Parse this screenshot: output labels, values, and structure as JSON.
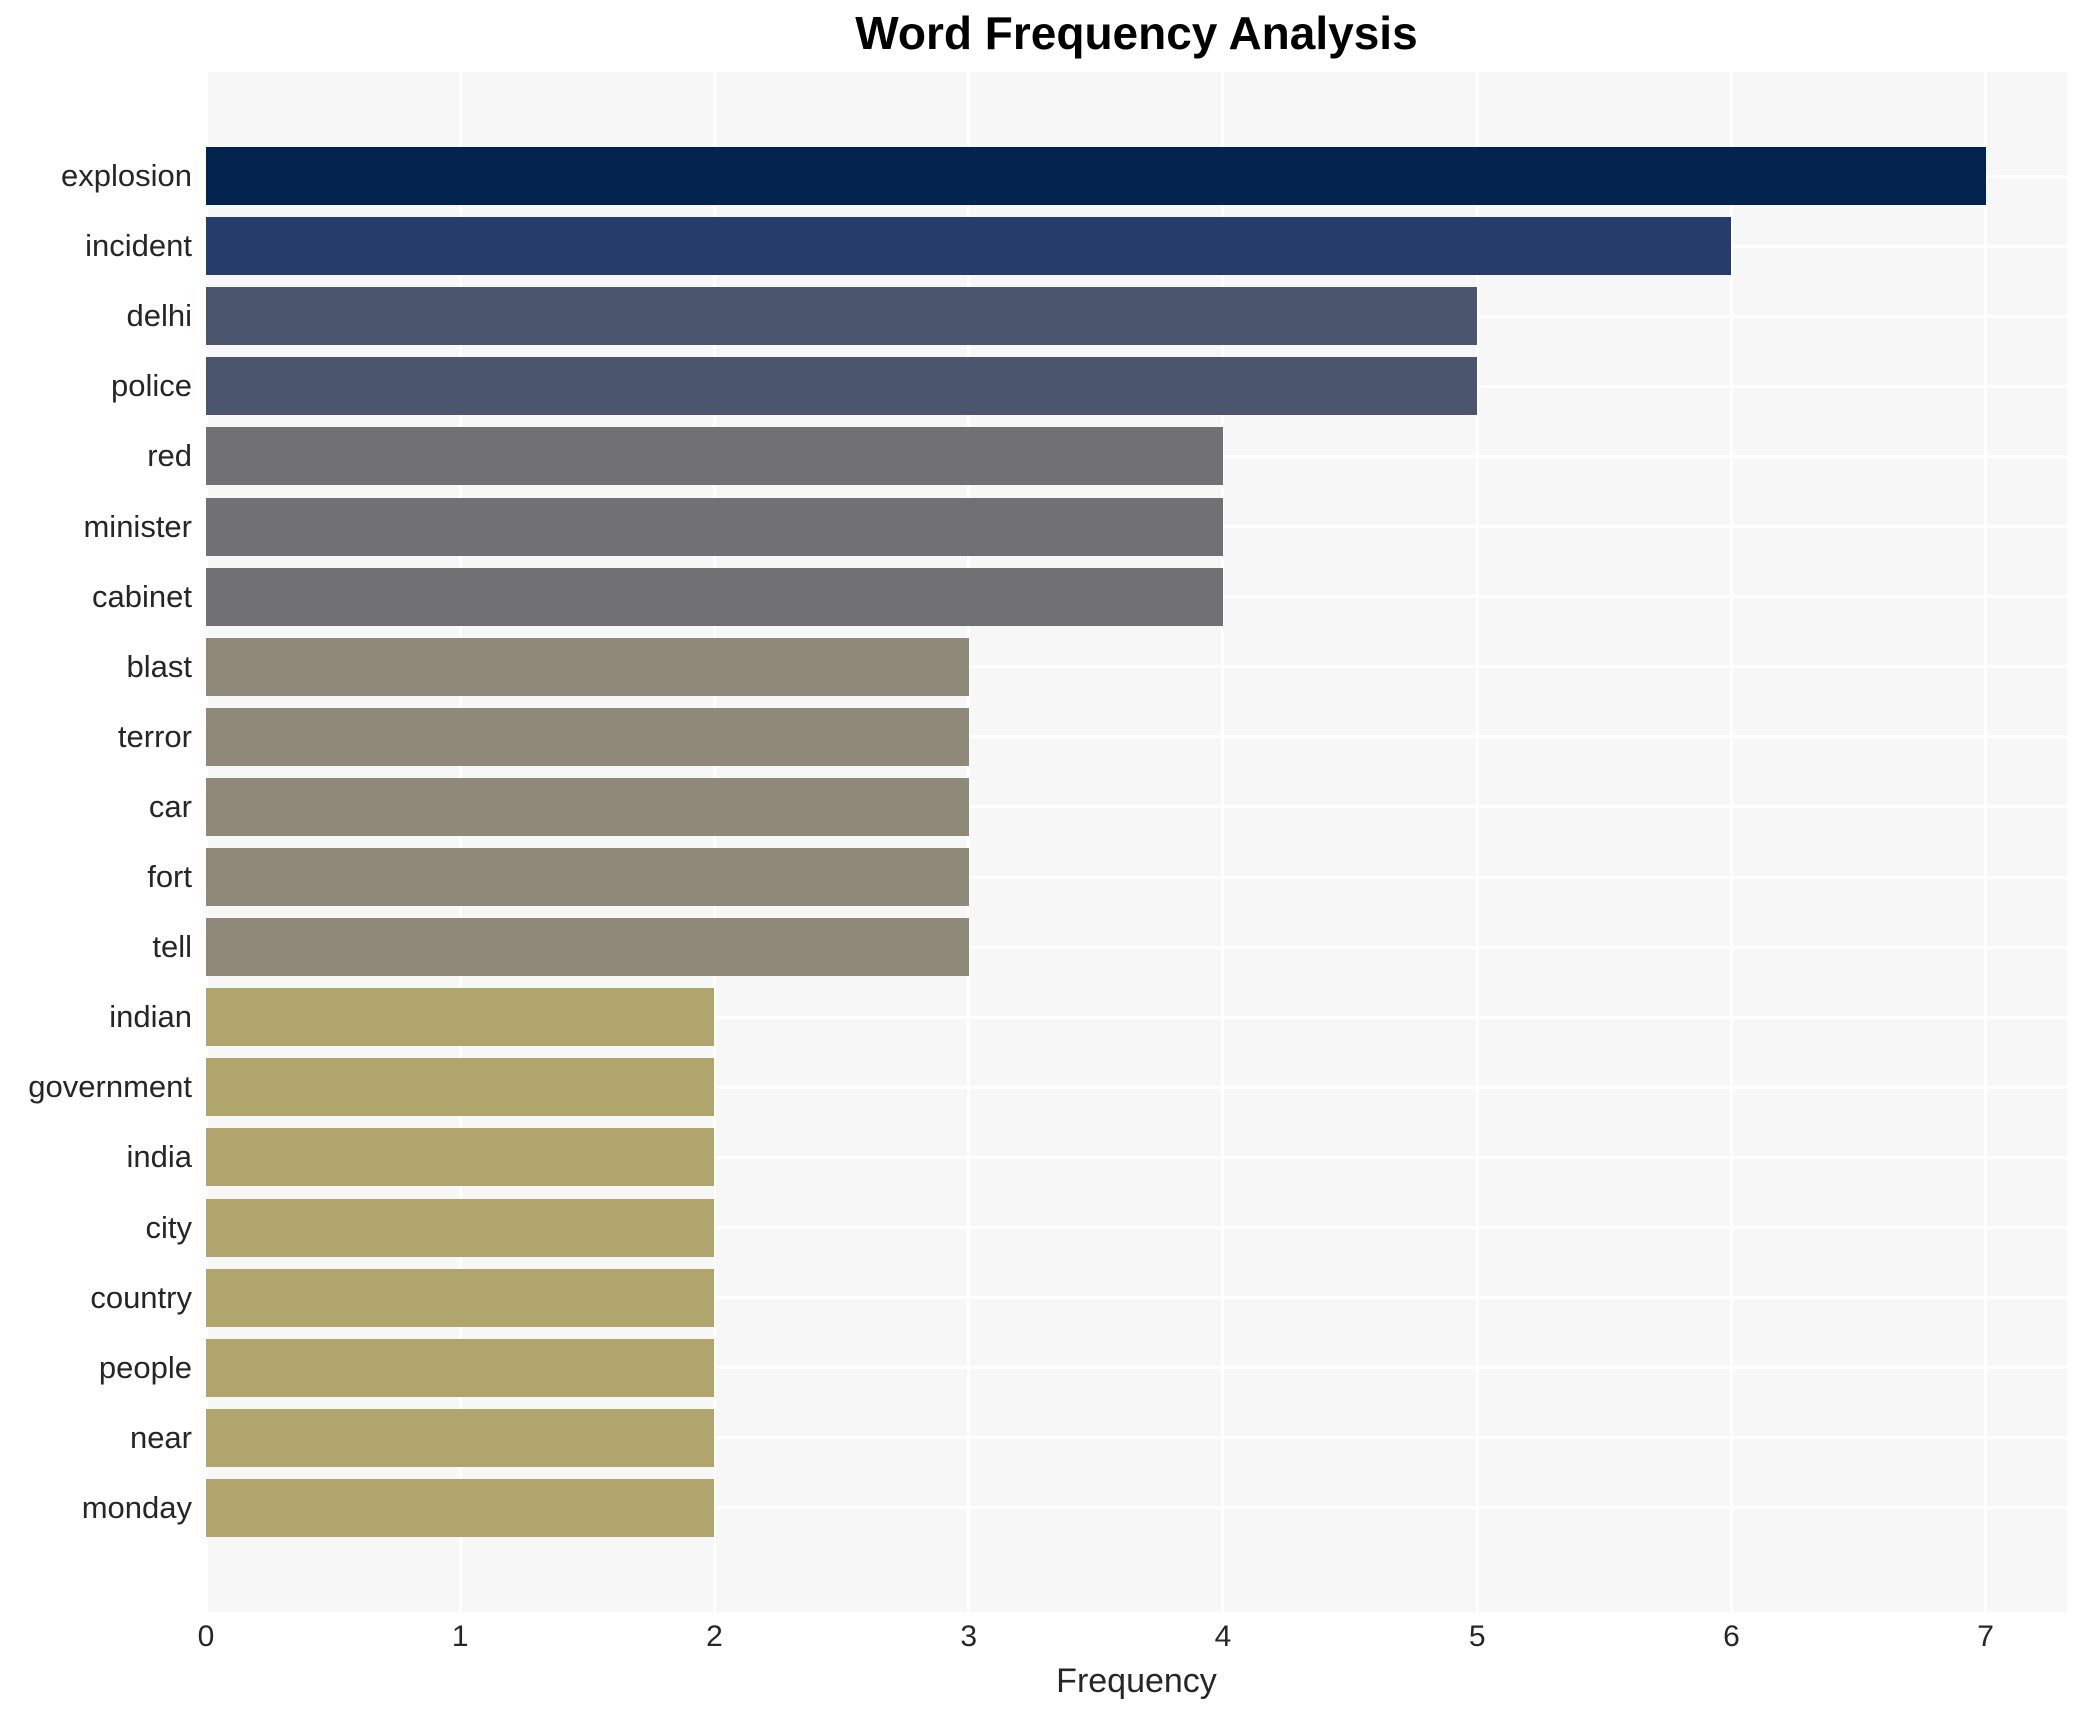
{
  "title": "Word Frequency Analysis",
  "chart_data": {
    "type": "bar",
    "orientation": "horizontal",
    "title": "Word Frequency Analysis",
    "xlabel": "Frequency",
    "ylabel": "",
    "categories": [
      "explosion",
      "incident",
      "delhi",
      "police",
      "red",
      "minister",
      "cabinet",
      "blast",
      "terror",
      "car",
      "fort",
      "tell",
      "indian",
      "government",
      "india",
      "city",
      "country",
      "people",
      "near",
      "monday"
    ],
    "values": [
      7,
      6,
      5,
      5,
      4,
      4,
      4,
      3,
      3,
      3,
      3,
      3,
      2,
      2,
      2,
      2,
      2,
      2,
      2,
      2
    ],
    "xticks": [
      0,
      1,
      2,
      3,
      4,
      5,
      6,
      7
    ],
    "xlim": [
      0,
      7.32
    ],
    "grid": true,
    "legend": "none",
    "panel_bg": "#f7f7f7",
    "grid_color": "#ffffff",
    "value_colors": {
      "7": "#02234e",
      "6": "#263c6b",
      "5": "#4c556e",
      "4": "#717174",
      "3": "#8e8978",
      "2": "#b0a56c"
    }
  }
}
